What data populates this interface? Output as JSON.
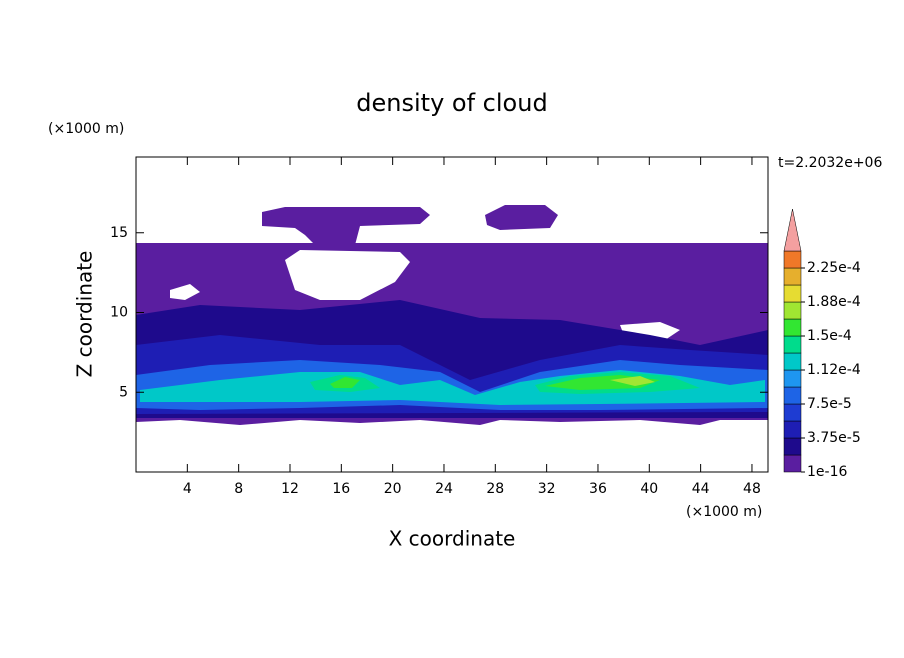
{
  "chart_data": {
    "type": "contour",
    "title": "density of cloud",
    "x_label": "X coordinate",
    "y_label": "Z coordinate",
    "x_unit": "(×1000 m)",
    "y_unit": "(×1000 m)",
    "time_label": "t=2.2032e+06",
    "xlim": [
      0,
      49.25
    ],
    "ylim": [
      0,
      19.75
    ],
    "xticks": [
      4,
      8,
      12,
      16,
      20,
      24,
      28,
      32,
      36,
      40,
      44,
      48
    ],
    "yticks": [
      5,
      10,
      15
    ],
    "colorbar": {
      "clim": [
        0,
        0.00024375
      ],
      "ticks": [
        {
          "value": 1e-16,
          "label": "1e-16"
        },
        {
          "value": 3.75e-05,
          "label": "3.75e-5"
        },
        {
          "value": 7.5e-05,
          "label": "7.5e-5"
        },
        {
          "value": 0.0001125,
          "label": "1.12e-4"
        },
        {
          "value": 0.00015,
          "label": "1.5e-4"
        },
        {
          "value": 0.0001875,
          "label": "1.88e-4"
        },
        {
          "value": 0.000225,
          "label": "2.25e-4"
        }
      ],
      "colors": [
        "#5a1ea0",
        "#1e0a8c",
        "#1e1eb4",
        "#1e3cd2",
        "#1e64e6",
        "#1e96f0",
        "#00c8c8",
        "#00dc8c",
        "#32e632",
        "#a0e632",
        "#e6dc32",
        "#e6af2d",
        "#f07828"
      ],
      "extend_color": "#f4a0a0"
    }
  }
}
